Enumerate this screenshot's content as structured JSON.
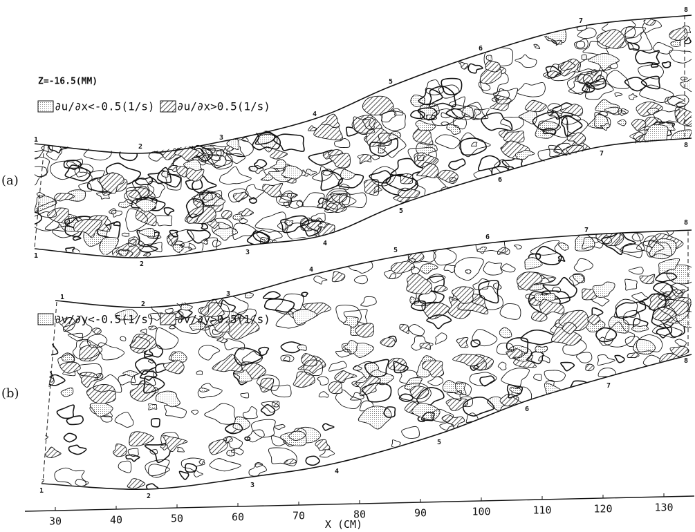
{
  "panels": [
    {
      "label": "(a)",
      "depth": "Z=-16.5(MM)",
      "legend": [
        "∂u/∂x<-0.5(1/s)",
        "∂u/∂x>0.5(1/s)"
      ],
      "sections": [
        "1",
        "2",
        "3",
        "4",
        "5",
        "6",
        "7",
        "8"
      ]
    },
    {
      "label": "(b)",
      "legend": [
        "∂v/∂y<-0.5(1/s)",
        "∂v/∂y>0.5(1/s)"
      ],
      "sections": [
        "1",
        "2",
        "3",
        "4",
        "5",
        "6",
        "7",
        "8"
      ]
    }
  ],
  "axis": {
    "label": "X (CM)",
    "xlim": [
      25,
      135
    ],
    "xticks": [
      30,
      40,
      50,
      60,
      70,
      80,
      90,
      100,
      110,
      120,
      130
    ]
  }
}
